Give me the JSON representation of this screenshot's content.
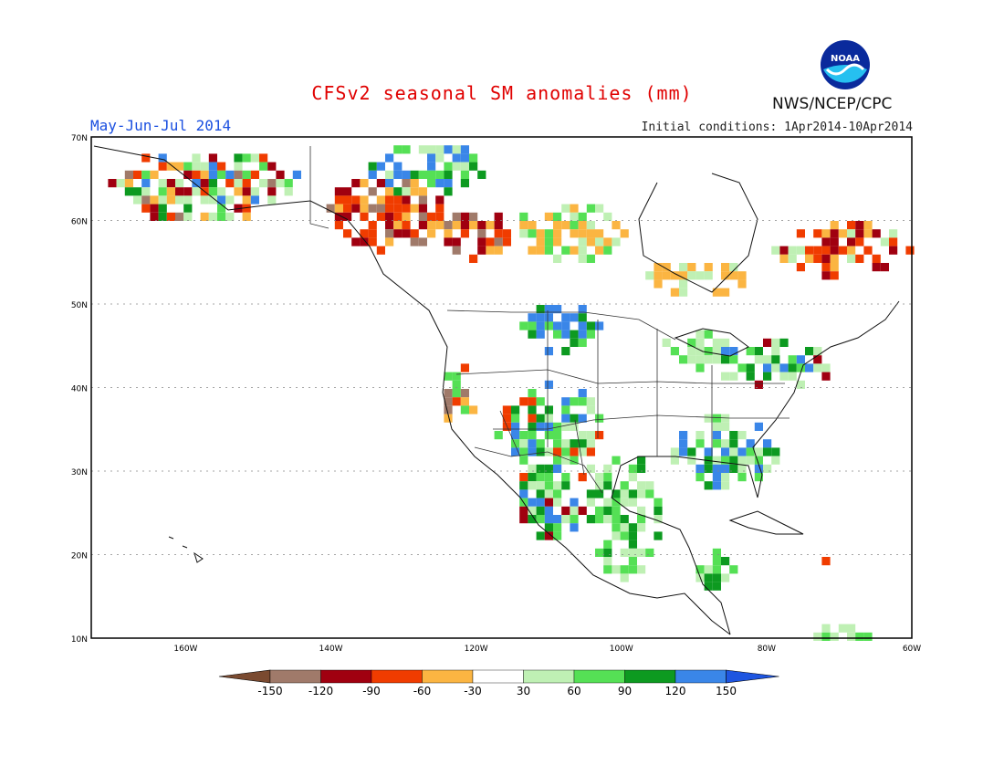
{
  "title": "CFSv2 seasonal SM anomalies (mm)",
  "period": "May-Jun-Jul 2014",
  "initial_conditions": "Initial conditions: 1Apr2014-10Apr2014",
  "agency": "NWS/NCEP/CPC",
  "logo_text": "NOAA",
  "map": {
    "lon_range": [
      -173,
      -60
    ],
    "lat_range": [
      10,
      70
    ],
    "lat_ticks": [
      "10N",
      "20N",
      "30N",
      "40N",
      "50N",
      "60N",
      "70N"
    ],
    "lon_ticks": [
      "160W",
      "140W",
      "120W",
      "100W",
      "80W",
      "60W"
    ],
    "grid": true
  },
  "colorbar": {
    "labels": [
      "-150",
      "-120",
      "-90",
      "-60",
      "-30",
      "30",
      "60",
      "90",
      "120",
      "150"
    ],
    "colors": [
      "#7a4a30",
      "#a07a6a",
      "#a00010",
      "#f03c00",
      "#fbb542",
      "#ffffff",
      "#bff0b4",
      "#55e055",
      "#0d9a20",
      "#3a86e8",
      "#1e55e0"
    ]
  }
}
